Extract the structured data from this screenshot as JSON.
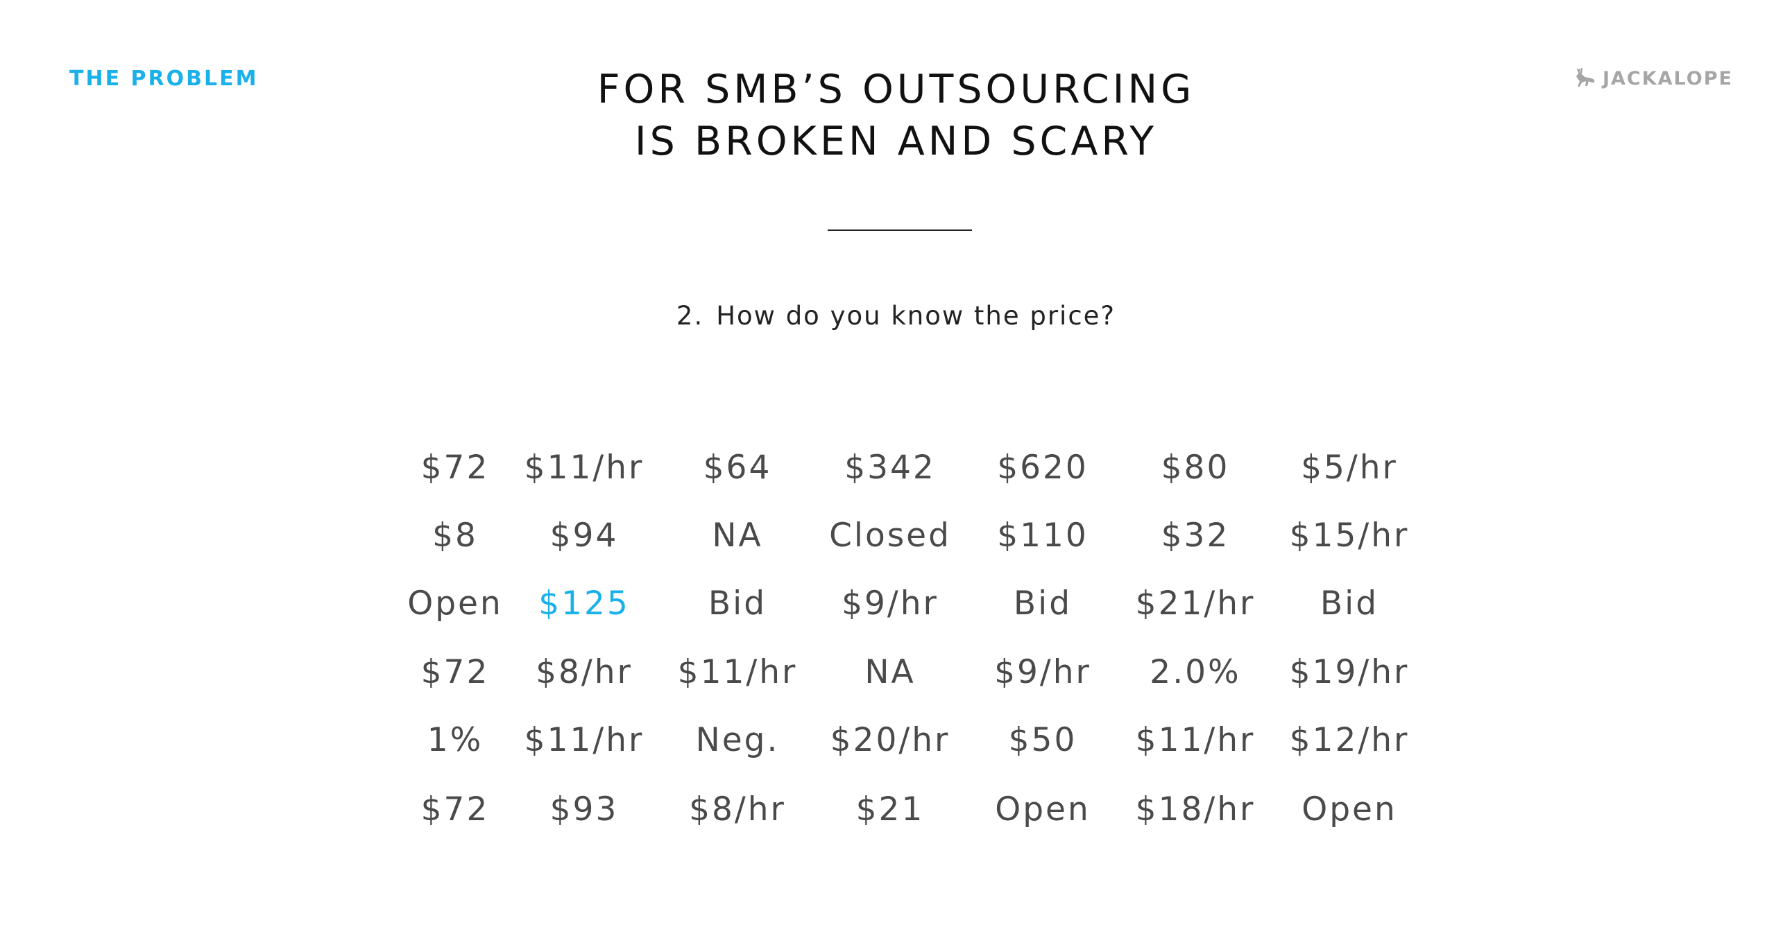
{
  "header": {
    "section_label": "THE PROBLEM",
    "brand_name": "JACKALOPE",
    "brand_icon": "jackalope-icon"
  },
  "title": {
    "line1": "FOR SMB’S OUTSOURCING",
    "line2": "IS BROKEN AND SCARY"
  },
  "question": {
    "number": "2.",
    "text": "How do you know the price?"
  },
  "colors": {
    "accent": "#1ab1ea",
    "text": "#4a4a4a",
    "brand_gray": "#a6a6a6"
  },
  "price_grid": {
    "rows": [
      [
        "$72",
        "$11/hr",
        "$64",
        "$342",
        "$620",
        "$80",
        "$5/hr"
      ],
      [
        "$8",
        "$94",
        "NA",
        "Closed",
        "$110",
        "$32",
        "$15/hr"
      ],
      [
        "Open",
        "$125",
        "Bid",
        "$9/hr",
        "Bid",
        "$21/hr",
        "Bid"
      ],
      [
        "$72",
        "$8/hr",
        "$11/hr",
        "NA",
        "$9/hr",
        "2.0%",
        "$19/hr"
      ],
      [
        "1%",
        "$11/hr",
        "Neg.",
        "$20/hr",
        "$50",
        "$11/hr",
        "$12/hr"
      ],
      [
        "$72",
        "$93",
        "$8/hr",
        "$21",
        "Open",
        "$18/hr",
        "Open"
      ]
    ],
    "highlighted": [
      {
        "row": 2,
        "col": 1
      }
    ]
  }
}
